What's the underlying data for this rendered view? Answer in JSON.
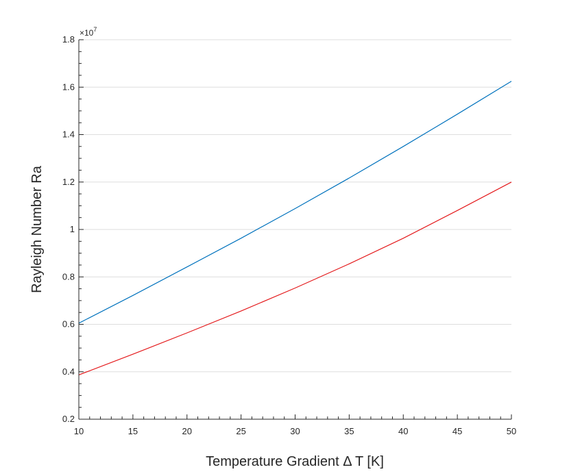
{
  "chart_data": {
    "type": "line",
    "title": "",
    "xlabel": "Temperature Gradient Δ T [K]",
    "ylabel": "Rayleigh Number Ra",
    "y_multiplier_label": "×10",
    "y_multiplier_exponent": "7",
    "xlim": [
      10,
      50
    ],
    "ylim": [
      0.2,
      1.8
    ],
    "x_ticks": [
      10,
      15,
      20,
      25,
      30,
      35,
      40,
      45,
      50
    ],
    "x_tick_labels": [
      "10",
      "15",
      "20",
      "25",
      "30",
      "35",
      "40",
      "45",
      "50"
    ],
    "y_ticks": [
      0.2,
      0.4,
      0.6,
      0.8,
      1.0,
      1.2,
      1.4,
      1.6,
      1.8
    ],
    "y_tick_labels": [
      "0.2",
      "0.4",
      "0.6",
      "0.8",
      "1",
      "1.2",
      "1.4",
      "1.6",
      "1.8"
    ],
    "grid": "horizontal",
    "x": [
      10,
      15,
      20,
      25,
      30,
      35,
      40,
      45,
      50
    ],
    "series": [
      {
        "color": "#0072BD",
        "values": [
          0.605,
          0.722,
          0.842,
          0.963,
          1.088,
          1.217,
          1.35,
          1.486,
          1.625
        ]
      },
      {
        "color": "#E41A1C",
        "values": [
          0.387,
          0.474,
          0.564,
          0.656,
          0.753,
          0.855,
          0.963,
          1.08,
          1.2
        ]
      }
    ]
  }
}
